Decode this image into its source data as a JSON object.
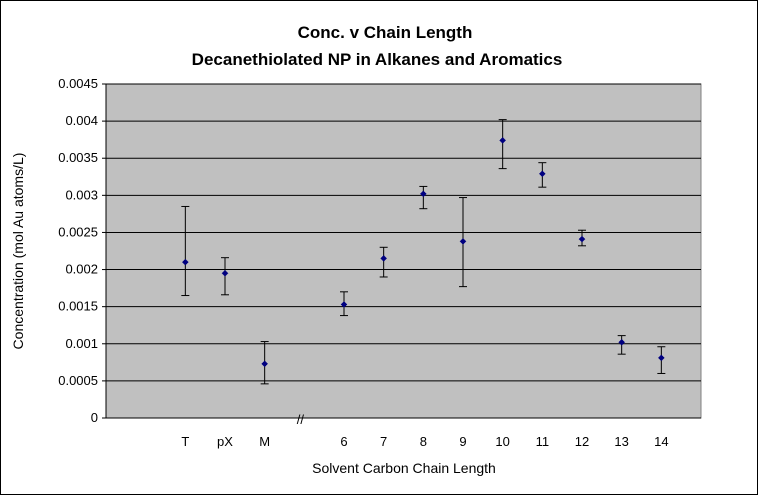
{
  "chart_data": {
    "type": "scatter",
    "title": "Conc. v Chain Length",
    "subtitle": "Decanethiolated NP in Alkanes and Aromatics",
    "xlabel": "Solvent Carbon Chain Length",
    "ylabel": "Concentration (mol Au atoms/L)",
    "ylim": [
      0,
      0.0045
    ],
    "yticks": [
      "0",
      "0.0005",
      "0.001",
      "0.0015",
      "0.002",
      "0.0025",
      "0.003",
      "0.0035",
      "0.004",
      "0.0045"
    ],
    "categories": [
      "T",
      "pX",
      "M",
      "",
      "6",
      "7",
      "8",
      "9",
      "10",
      "11",
      "12",
      "13",
      "14"
    ],
    "axis_break_label": "//",
    "grid": "horizontal",
    "plot_background": "#c0c0c0",
    "marker_color": "#000080",
    "points": [
      {
        "x": "T",
        "y": 0.0021,
        "err_low": 0.00165,
        "err_high": 0.00285
      },
      {
        "x": "pX",
        "y": 0.00195,
        "err_low": 0.00166,
        "err_high": 0.00216
      },
      {
        "x": "M",
        "y": 0.00073,
        "err_low": 0.00046,
        "err_high": 0.00103
      },
      {
        "x": "6",
        "y": 0.00153,
        "err_low": 0.00138,
        "err_high": 0.0017
      },
      {
        "x": "7",
        "y": 0.00215,
        "err_low": 0.0019,
        "err_high": 0.0023
      },
      {
        "x": "8",
        "y": 0.00302,
        "err_low": 0.00282,
        "err_high": 0.00312
      },
      {
        "x": "9",
        "y": 0.00238,
        "err_low": 0.00177,
        "err_high": 0.00297
      },
      {
        "x": "10",
        "y": 0.00374,
        "err_low": 0.00336,
        "err_high": 0.00402
      },
      {
        "x": "11",
        "y": 0.00329,
        "err_low": 0.00311,
        "err_high": 0.00344
      },
      {
        "x": "12",
        "y": 0.00241,
        "err_low": 0.00232,
        "err_high": 0.00253
      },
      {
        "x": "13",
        "y": 0.00102,
        "err_low": 0.00086,
        "err_high": 0.00111
      },
      {
        "x": "14",
        "y": 0.00081,
        "err_low": 0.0006,
        "err_high": 0.00096
      }
    ]
  }
}
